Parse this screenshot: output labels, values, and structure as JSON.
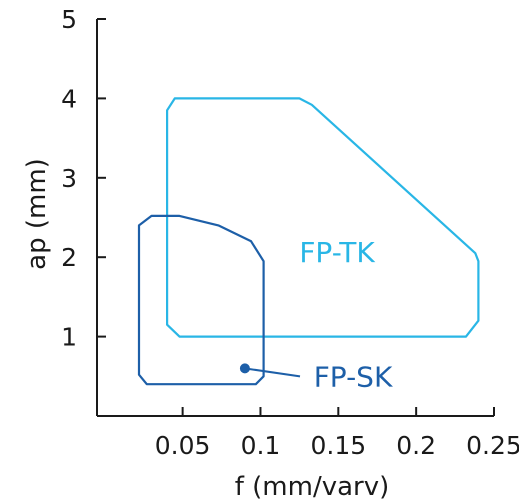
{
  "chart_data": {
    "type": "area",
    "xlabel": "f (mm/varv)",
    "ylabel": "ap (mm)",
    "xlim": [
      -0.005,
      0.25
    ],
    "ylim": [
      0,
      5
    ],
    "x_ticks": [
      0.05,
      0.1,
      0.15,
      0.2,
      0.25
    ],
    "x_tick_labels": [
      "0.05",
      "0.1",
      "0.15",
      "0.2",
      "0.25"
    ],
    "y_ticks": [
      1,
      2,
      3,
      4,
      5
    ],
    "y_tick_labels": [
      "1",
      "2",
      "3",
      "4",
      "5"
    ],
    "series": [
      {
        "name": "FP-TK",
        "color": "#29b6e6",
        "outline": [
          [
            0.04,
            3.85
          ],
          [
            0.045,
            4.0
          ],
          [
            0.125,
            4.0
          ],
          [
            0.133,
            3.92
          ],
          [
            0.238,
            2.05
          ],
          [
            0.24,
            1.95
          ],
          [
            0.24,
            1.2
          ],
          [
            0.232,
            1.0
          ],
          [
            0.048,
            1.0
          ],
          [
            0.04,
            1.15
          ]
        ]
      },
      {
        "name": "FP-SK",
        "color": "#1d5fa8",
        "outline": [
          [
            0.022,
            2.4
          ],
          [
            0.03,
            2.52
          ],
          [
            0.048,
            2.52
          ],
          [
            0.073,
            2.4
          ],
          [
            0.094,
            2.2
          ],
          [
            0.102,
            1.95
          ],
          [
            0.102,
            0.5
          ],
          [
            0.097,
            0.4
          ],
          [
            0.027,
            0.4
          ],
          [
            0.022,
            0.52
          ]
        ],
        "marker": [
          0.09,
          0.6
        ]
      }
    ]
  }
}
